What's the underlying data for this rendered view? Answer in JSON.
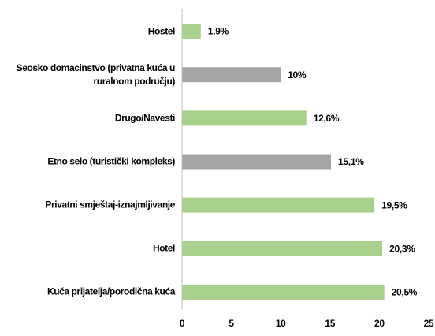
{
  "chart_data": {
    "type": "barh",
    "categories": [
      "Hostel",
      "Seosko domacinstvo (privatna kuća u ruralnom području)",
      "Drugo/Navesti",
      "Etno selo (turistički kompleks)",
      "Privatni smještaj-iznajmljivanje",
      "Hotel",
      "Kuća prijatelja/porodična kuća"
    ],
    "values": [
      1.9,
      10,
      12.6,
      15.1,
      19.5,
      20.3,
      20.5
    ],
    "value_labels": [
      "1,9%",
      "10%",
      "12,6%",
      "15,1%",
      "19,5%",
      "20,3%",
      "20,5%"
    ],
    "colors": [
      "#a9d18e",
      "#a5a5a5",
      "#a9d18e",
      "#a5a5a5",
      "#a9d18e",
      "#a9d18e",
      "#a9d18e"
    ],
    "xlim": [
      0,
      25
    ],
    "xticks": [
      0,
      5,
      10,
      15,
      20,
      25
    ],
    "grid": false
  }
}
